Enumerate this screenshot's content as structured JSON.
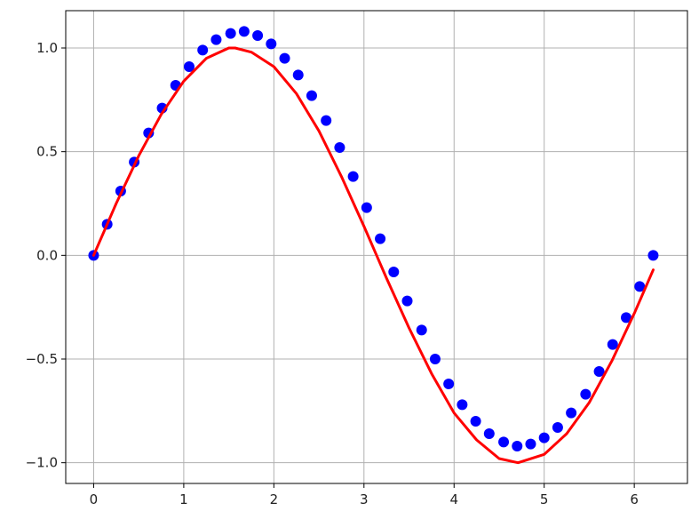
{
  "chart_data": {
    "type": "scatter",
    "title": "",
    "xlabel": "",
    "ylabel": "",
    "xlim": [
      -0.31,
      6.59
    ],
    "ylim": [
      -1.1,
      1.18
    ],
    "grid": true,
    "x_ticks": [
      {
        "value": 0,
        "label": "0"
      },
      {
        "value": 1,
        "label": "1"
      },
      {
        "value": 2,
        "label": "2"
      },
      {
        "value": 3,
        "label": "3"
      },
      {
        "value": 4,
        "label": "4"
      },
      {
        "value": 5,
        "label": "5"
      },
      {
        "value": 6,
        "label": "6"
      }
    ],
    "y_ticks": [
      {
        "value": -1.0,
        "label": "−1.0"
      },
      {
        "value": -0.5,
        "label": "−0.5"
      },
      {
        "value": 0.0,
        "label": "0.0"
      },
      {
        "value": 0.5,
        "label": "0.5"
      },
      {
        "value": 1.0,
        "label": "1.0"
      }
    ],
    "series": [
      {
        "kind": "points",
        "color": "#0000ff",
        "x": [
          0.0,
          0.15,
          0.3,
          0.45,
          0.61,
          0.76,
          0.91,
          1.06,
          1.21,
          1.36,
          1.52,
          1.67,
          1.82,
          1.97,
          2.12,
          2.27,
          2.42,
          2.58,
          2.73,
          2.88,
          3.03,
          3.18,
          3.33,
          3.48,
          3.64,
          3.79,
          3.94,
          4.09,
          4.24,
          4.39,
          4.55,
          4.7,
          4.85,
          5.0,
          5.15,
          5.3,
          5.46,
          5.61,
          5.76,
          5.91,
          6.06,
          6.21
        ],
        "y": [
          0.0,
          0.15,
          0.31,
          0.45,
          0.59,
          0.71,
          0.82,
          0.91,
          0.99,
          1.04,
          1.07,
          1.08,
          1.06,
          1.02,
          0.95,
          0.87,
          0.77,
          0.65,
          0.52,
          0.38,
          0.23,
          0.08,
          -0.08,
          -0.22,
          -0.36,
          -0.5,
          -0.62,
          -0.72,
          -0.8,
          -0.86,
          -0.9,
          -0.92,
          -0.91,
          -0.88,
          -0.83,
          -0.76,
          -0.67,
          -0.56,
          -0.43,
          -0.3,
          -0.15,
          0.0
        ]
      },
      {
        "kind": "line",
        "color": "#ff0000",
        "x": [
          0.0,
          0.25,
          0.5,
          0.75,
          1.0,
          1.25,
          1.5,
          1.57,
          1.75,
          2.0,
          2.25,
          2.5,
          2.75,
          3.0,
          3.14,
          3.25,
          3.5,
          3.75,
          4.0,
          4.25,
          4.5,
          4.71,
          5.0,
          5.25,
          5.5,
          5.75,
          6.0,
          6.21
        ],
        "y": [
          0.0,
          0.25,
          0.48,
          0.68,
          0.84,
          0.95,
          1.0,
          1.0,
          0.98,
          0.91,
          0.78,
          0.6,
          0.38,
          0.14,
          0.0,
          -0.11,
          -0.35,
          -0.57,
          -0.76,
          -0.89,
          -0.98,
          -1.0,
          -0.96,
          -0.86,
          -0.71,
          -0.51,
          -0.28,
          -0.07
        ]
      }
    ]
  }
}
